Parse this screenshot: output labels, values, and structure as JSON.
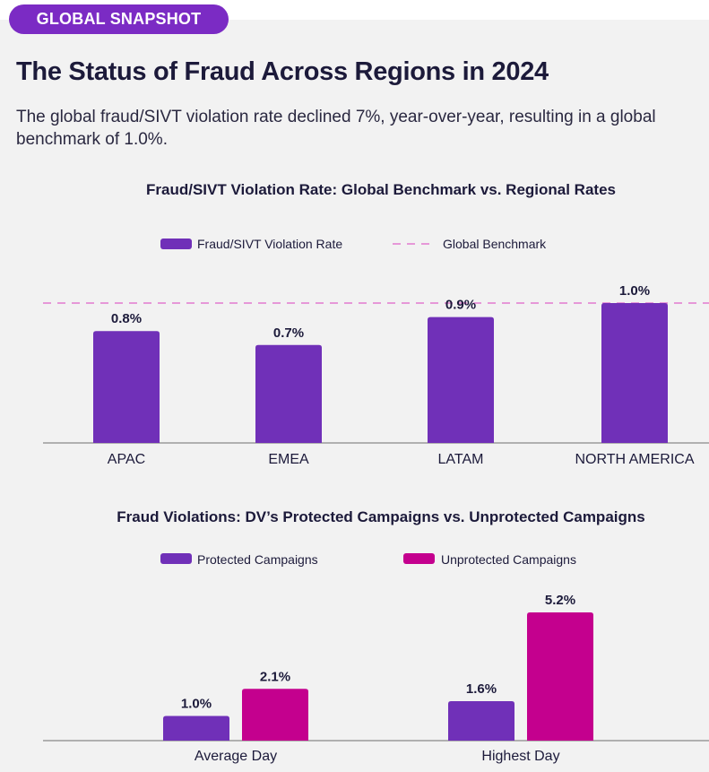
{
  "header": {
    "badge": "GLOBAL SNAPSHOT",
    "title": "The Status of Fraud Across Regions in 2024",
    "subtitle": "The global fraud/SIVT violation rate declined 7%, year-over-year, resulting in a global benchmark of 1.0%."
  },
  "colors": {
    "purple": "#7030b8",
    "magenta": "#c4008e",
    "benchmark": "#e27ad0",
    "axis": "#9a9a9a"
  },
  "chart_data": [
    {
      "type": "bar",
      "title": "Fraud/SIVT Violation Rate: Global Benchmark vs. Regional Rates",
      "categories": [
        "APAC",
        "EMEA",
        "LATAM",
        "NORTH AMERICA"
      ],
      "series": [
        {
          "name": "Fraud/SIVT Violation Rate",
          "values": [
            0.8,
            0.7,
            0.9,
            1.0
          ],
          "labels": [
            "0.8%",
            "0.7%",
            "0.9%",
            "1.0%"
          ]
        }
      ],
      "benchmark": {
        "name": "Global Benchmark",
        "value": 1.0
      },
      "ylim": [
        0,
        1.0
      ],
      "grid": false,
      "legend": "top-center"
    },
    {
      "type": "bar",
      "title": "Fraud Violations: DV’s Protected Campaigns vs. Unprotected Campaigns",
      "categories": [
        "Average Day",
        "Highest Day"
      ],
      "series": [
        {
          "name": "Protected Campaigns",
          "values": [
            1.0,
            1.6
          ],
          "labels": [
            "1.0%",
            "1.6%"
          ]
        },
        {
          "name": "Unprotected Campaigns",
          "values": [
            2.1,
            5.2
          ],
          "labels": [
            "2.1%",
            "5.2%"
          ]
        }
      ],
      "ylim": [
        0,
        5.2
      ],
      "grid": false,
      "legend": "top-center"
    }
  ]
}
